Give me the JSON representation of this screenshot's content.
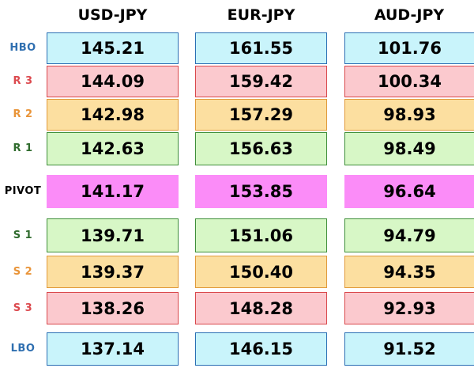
{
  "headers": [
    "USD-JPY",
    "EUR-JPY",
    "AUD-JPY"
  ],
  "rows": [
    {
      "label": "HBO",
      "values": [
        "145.21",
        "161.55",
        "101.76"
      ],
      "label_color": "#2f6fb0",
      "fill": "#c9f4fb"
    },
    {
      "label": "R 3",
      "values": [
        "144.09",
        "159.42",
        "100.34"
      ],
      "label_color": "#dc4a4f",
      "fill": "#fbc9ce"
    },
    {
      "label": "R 2",
      "values": [
        "142.98",
        "157.29",
        "98.93"
      ],
      "label_color": "#e99438",
      "fill": "#fcdfa0"
    },
    {
      "label": "R 1",
      "values": [
        "142.63",
        "156.63",
        "98.49"
      ],
      "label_color": "#2f6b2d",
      "fill": "#d7f7c6"
    },
    {
      "label": "PIVOT",
      "values": [
        "141.17",
        "153.85",
        "96.64"
      ],
      "label_color": "#000000",
      "fill": "#fb8cf8"
    },
    {
      "label": "S 1",
      "values": [
        "139.71",
        "151.06",
        "94.79"
      ],
      "label_color": "#2f6b2d",
      "fill": "#d7f7c6"
    },
    {
      "label": "S 2",
      "values": [
        "139.37",
        "150.40",
        "94.35"
      ],
      "label_color": "#e99438",
      "fill": "#fcdfa0"
    },
    {
      "label": "S 3",
      "values": [
        "138.26",
        "148.28",
        "92.93"
      ],
      "label_color": "#dc4a4f",
      "fill": "#fbc9ce"
    },
    {
      "label": "LBO",
      "values": [
        "137.14",
        "146.15",
        "91.52"
      ],
      "label_color": "#2f6fb0",
      "fill": "#c9f4fb"
    }
  ]
}
